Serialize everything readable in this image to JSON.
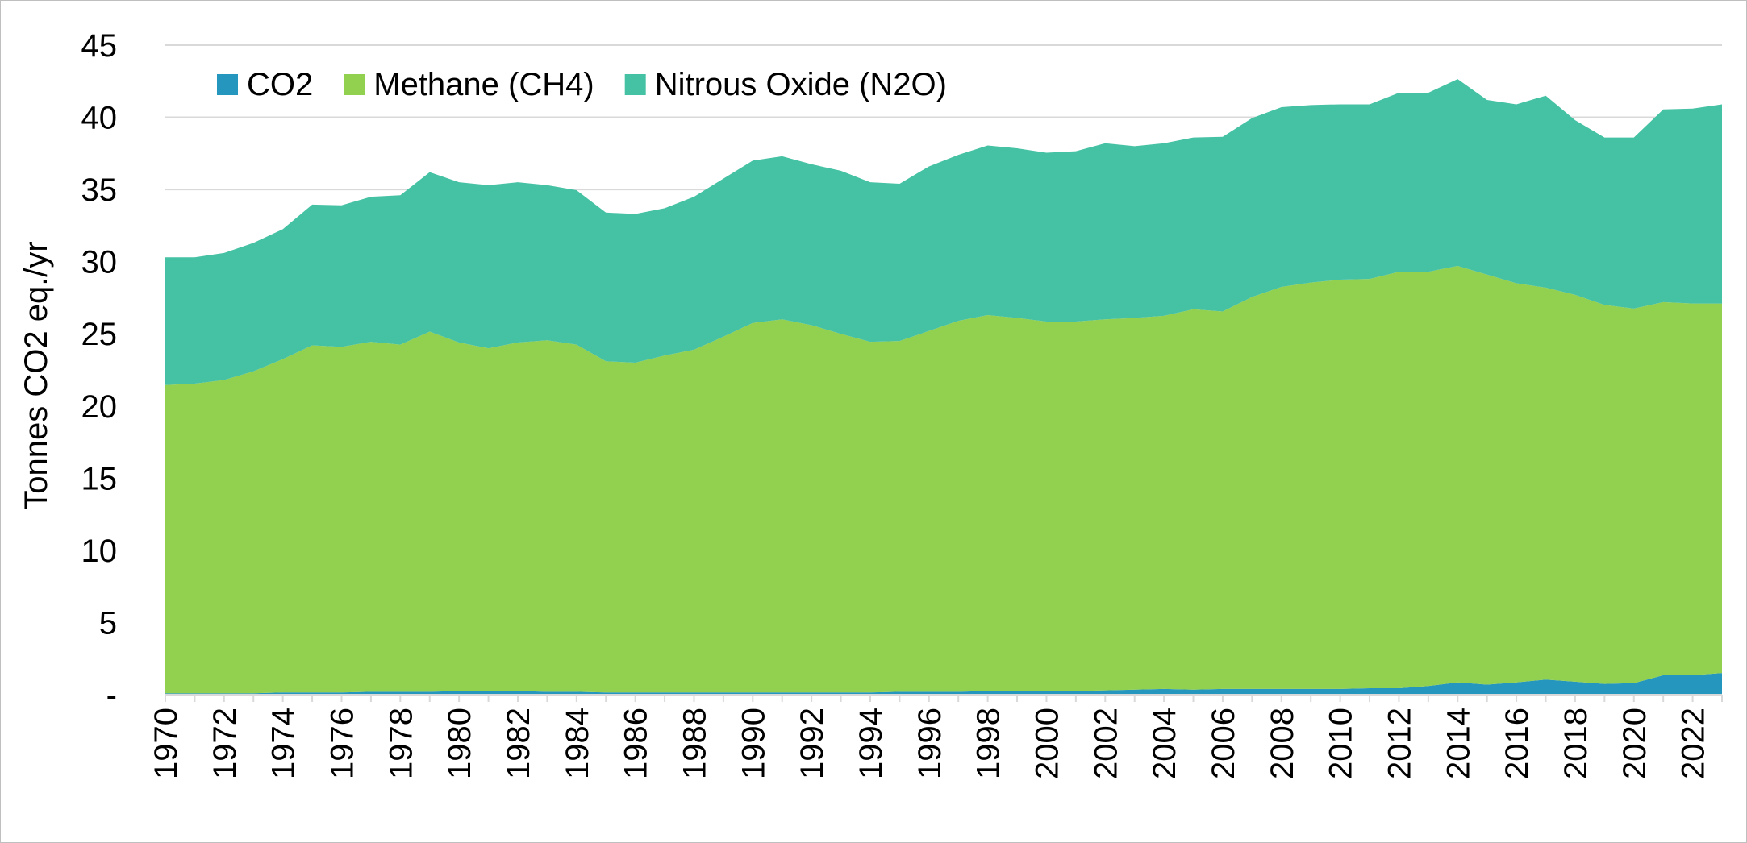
{
  "chart_data": {
    "type": "area",
    "stacked": true,
    "title": "",
    "xlabel": "",
    "ylabel": "Tonnes CO2 eq./yr",
    "ylim": [
      0,
      45
    ],
    "yticks": [
      0,
      5,
      10,
      15,
      20,
      25,
      30,
      35,
      40,
      45
    ],
    "ytick_labels": [
      "-",
      "5",
      "10",
      "15",
      "20",
      "25",
      "30",
      "35",
      "40",
      "45"
    ],
    "xtick_labels": [
      "1970",
      "1972",
      "1974",
      "1976",
      "1978",
      "1980",
      "1982",
      "1984",
      "1986",
      "1988",
      "1990",
      "1992",
      "1994",
      "1996",
      "1998",
      "2000",
      "2002",
      "2004",
      "2006",
      "2008",
      "2010",
      "2012",
      "2014",
      "2016",
      "2018",
      "2020",
      "2022"
    ],
    "grid": "horizontal",
    "legend_position": "top-left",
    "x": [
      1970,
      1971,
      1972,
      1973,
      1974,
      1975,
      1976,
      1977,
      1978,
      1979,
      1980,
      1981,
      1982,
      1983,
      1984,
      1985,
      1986,
      1987,
      1988,
      1989,
      1990,
      1991,
      1992,
      1993,
      1994,
      1995,
      1996,
      1997,
      1998,
      1999,
      2000,
      2001,
      2002,
      2003,
      2004,
      2005,
      2006,
      2007,
      2008,
      2009,
      2010,
      2011,
      2012,
      2013,
      2014,
      2015,
      2016,
      2017,
      2018,
      2019,
      2020,
      2021,
      2022,
      2023
    ],
    "series": [
      {
        "name": "CO2",
        "color": "#2596be",
        "values": [
          0.1,
          0.1,
          0.1,
          0.1,
          0.15,
          0.15,
          0.15,
          0.2,
          0.2,
          0.2,
          0.25,
          0.25,
          0.25,
          0.2,
          0.2,
          0.15,
          0.15,
          0.15,
          0.15,
          0.15,
          0.15,
          0.15,
          0.15,
          0.15,
          0.15,
          0.2,
          0.2,
          0.2,
          0.25,
          0.25,
          0.25,
          0.25,
          0.3,
          0.35,
          0.4,
          0.35,
          0.4,
          0.4,
          0.4,
          0.4,
          0.4,
          0.45,
          0.45,
          0.6,
          0.85,
          0.7,
          0.85,
          1.05,
          0.9,
          0.75,
          0.8,
          1.35,
          1.35,
          1.5
        ]
      },
      {
        "name": "Methane (CH4)",
        "color": "#92d050",
        "values": [
          21.35,
          21.45,
          21.7,
          22.3,
          23.1,
          24.05,
          23.95,
          24.25,
          24.05,
          24.95,
          24.15,
          23.75,
          24.15,
          24.35,
          24.05,
          22.95,
          22.85,
          23.35,
          23.75,
          24.65,
          25.6,
          25.85,
          25.45,
          24.85,
          24.3,
          24.3,
          25.0,
          25.7,
          26.05,
          25.85,
          25.6,
          25.6,
          25.7,
          25.75,
          25.85,
          26.35,
          26.15,
          27.15,
          27.85,
          28.15,
          28.35,
          28.35,
          28.85,
          28.7,
          28.85,
          28.4,
          27.65,
          27.15,
          26.8,
          26.25,
          25.95,
          25.85,
          25.75,
          25.6
        ]
      },
      {
        "name": "Nitrous Oxide (N2O)",
        "color": "#45c1a4",
        "values": [
          8.85,
          8.75,
          8.8,
          8.9,
          9.0,
          9.75,
          9.8,
          10.05,
          10.35,
          11.05,
          11.1,
          11.3,
          11.1,
          10.75,
          10.7,
          10.3,
          10.3,
          10.2,
          10.6,
          10.95,
          11.25,
          11.3,
          11.15,
          11.3,
          11.05,
          10.9,
          11.4,
          11.5,
          11.75,
          11.75,
          11.7,
          11.8,
          12.2,
          11.9,
          11.95,
          11.9,
          12.1,
          12.4,
          12.45,
          12.3,
          12.15,
          12.1,
          12.4,
          12.4,
          12.95,
          12.1,
          12.4,
          13.3,
          12.1,
          11.6,
          11.85,
          13.35,
          13.5,
          13.8
        ]
      }
    ]
  }
}
